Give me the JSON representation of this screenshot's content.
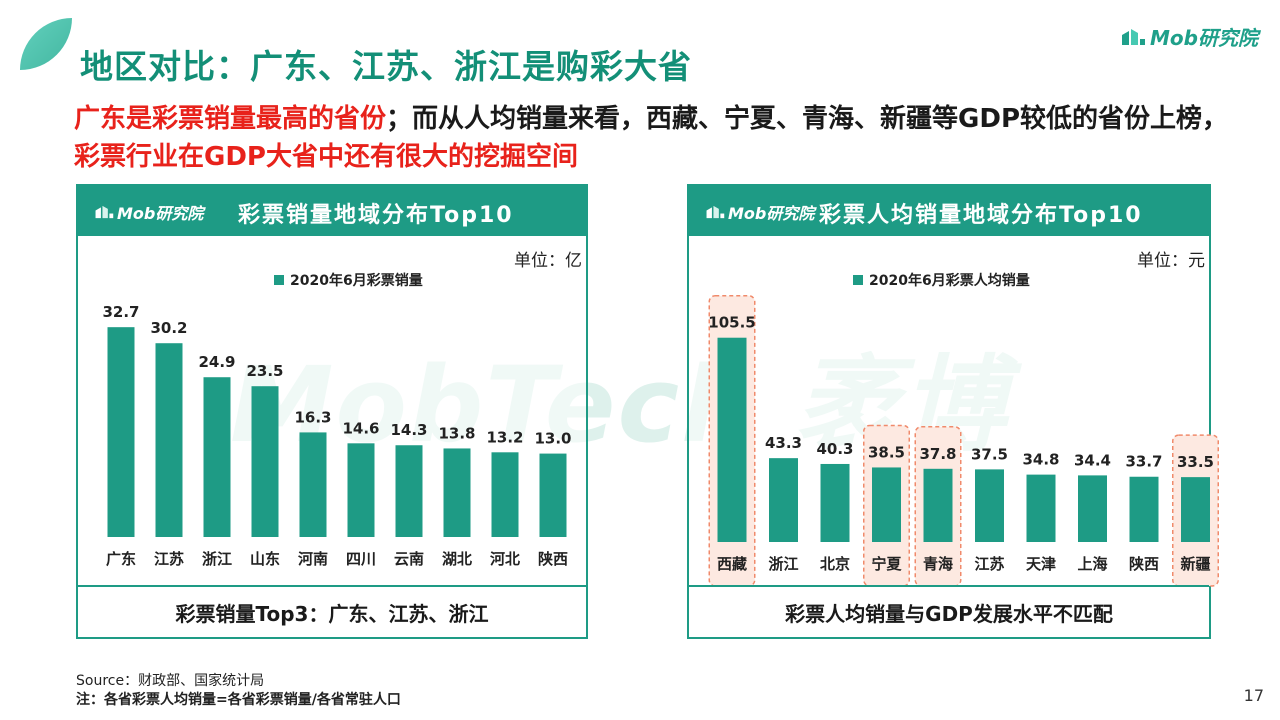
{
  "title": "地区对比：广东、江苏、浙江是购彩大省",
  "logo_text": "Mob研究院",
  "watermark": "MobTech 袤博",
  "subtitle": {
    "red1": "广东是彩票销量最高的省份",
    "black": "；而从人均销量来看，西藏、宁夏、青海、新疆等GDP较低的省份上榜，",
    "red2": "彩票行业在GDP大省中还有很大的挖掘空间"
  },
  "colors": {
    "accent": "#1e9b85",
    "highlight_border": "#f08a6b",
    "highlight_fill": "#fde9e1",
    "red": "#e8221b"
  },
  "left_panel": {
    "header_logo": "Mob研究院",
    "header_title": "彩票销量地域分布Top10",
    "unit": "单位：亿",
    "footer": "彩票销量Top3：广东、江苏、浙江"
  },
  "right_panel": {
    "header_logo": "Mob研究院",
    "header_title": "彩票人均销量地域分布Top10",
    "unit": "单位：元",
    "footer": "彩票人均销量与GDP发展水平不匹配"
  },
  "chart_data": [
    {
      "type": "bar",
      "series": [
        {
          "name": "2020年6月彩票销量",
          "values": [
            32.7,
            30.2,
            24.9,
            23.5,
            16.3,
            14.6,
            14.3,
            13.8,
            13.2,
            13.0
          ]
        }
      ],
      "categories": [
        "广东",
        "江苏",
        "浙江",
        "山东",
        "河南",
        "四川",
        "云南",
        "湖北",
        "河北",
        "陕西"
      ],
      "ylim": [
        0,
        36
      ],
      "legend": "top-left",
      "grid": false,
      "highlighted": []
    },
    {
      "type": "bar",
      "series": [
        {
          "name": "2020年6月彩票人均销量",
          "values": [
            105.5,
            43.3,
            40.3,
            38.5,
            37.8,
            37.5,
            34.8,
            34.4,
            33.7,
            33.5
          ]
        }
      ],
      "categories": [
        "西藏",
        "浙江",
        "北京",
        "宁夏",
        "青海",
        "江苏",
        "天津",
        "上海",
        "陕西",
        "新疆"
      ],
      "ylim": [
        0,
        110
      ],
      "legend": "top-left",
      "grid": false,
      "highlighted": [
        "西藏",
        "宁夏",
        "青海",
        "新疆"
      ]
    }
  ],
  "source": "Source：财政部、国家统计局",
  "note": "注：各省彩票人均销量=各省彩票销量/各省常驻人口",
  "page_number": "17"
}
